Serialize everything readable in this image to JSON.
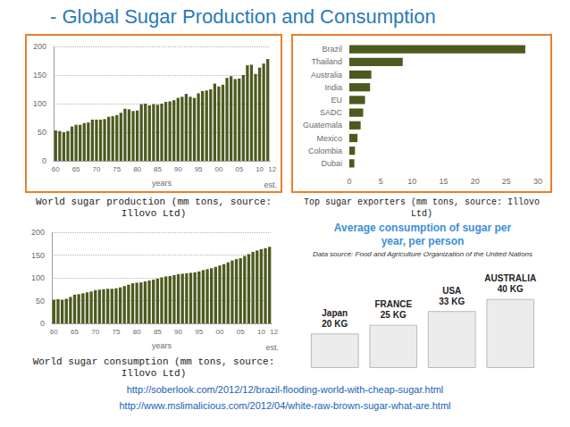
{
  "title": "- Global Sugar Production and Consumption",
  "chart_data": [
    {
      "type": "bar",
      "title": "World sugar production (mm tons, source: Illovo Ltd)",
      "x_label": "years",
      "annotations": [
        "est."
      ],
      "categories": [
        "60",
        null,
        null,
        null,
        null,
        "65",
        null,
        null,
        null,
        null,
        "70",
        null,
        null,
        null,
        null,
        "75",
        null,
        null,
        null,
        null,
        "80",
        null,
        null,
        null,
        null,
        "85",
        null,
        null,
        null,
        null,
        "90",
        null,
        null,
        null,
        null,
        "95",
        null,
        null,
        null,
        null,
        "00",
        null,
        null,
        null,
        null,
        "05",
        null,
        null,
        null,
        null,
        "10",
        null,
        "12"
      ],
      "values": [
        53,
        52,
        50,
        52,
        60,
        63,
        63,
        66,
        67,
        72,
        72,
        72,
        73,
        77,
        78,
        80,
        84,
        91,
        90,
        87,
        88,
        99,
        100,
        97,
        99,
        98,
        100,
        103,
        104,
        106,
        110,
        112,
        117,
        112,
        110,
        118,
        122,
        123,
        125,
        135,
        130,
        133,
        145,
        148,
        143,
        144,
        150,
        167,
        168,
        152,
        163,
        170,
        178
      ],
      "color": "#4d5a1f",
      "ylim": [
        0,
        200
      ],
      "yticks": [
        0,
        50,
        100,
        150,
        200
      ],
      "grid": true
    },
    {
      "type": "bar",
      "title": "World sugar consumption (mm tons, source: Illovo Ltd)",
      "x_label": "years",
      "annotations": [
        "est."
      ],
      "categories": [
        "60",
        null,
        null,
        null,
        null,
        "65",
        null,
        null,
        null,
        null,
        "70",
        null,
        null,
        null,
        null,
        "75",
        null,
        null,
        null,
        null,
        "80",
        null,
        null,
        null,
        null,
        "85",
        null,
        null,
        null,
        null,
        "90",
        null,
        null,
        null,
        null,
        "95",
        null,
        null,
        null,
        null,
        "00",
        null,
        null,
        null,
        null,
        "05",
        null,
        null,
        null,
        null,
        "10",
        null,
        "12"
      ],
      "values": [
        52,
        53,
        52,
        54,
        58,
        63,
        64,
        66,
        68,
        70,
        73,
        74,
        75,
        76,
        76,
        77,
        79,
        82,
        85,
        88,
        89,
        90,
        92,
        94,
        96,
        98,
        101,
        103,
        104,
        106,
        108,
        109,
        110,
        111,
        112,
        114,
        117,
        119,
        121,
        124,
        127,
        130,
        134,
        138,
        141,
        143,
        148,
        152,
        157,
        160,
        163,
        165,
        168
      ],
      "color": "#4d5a1f",
      "ylim": [
        0,
        200
      ],
      "yticks": [
        0,
        50,
        100,
        150,
        200
      ],
      "grid": true
    },
    {
      "type": "bar",
      "orientation": "horizontal",
      "title": "Top sugar exporters (mm tons, source: Illovo Ltd)",
      "categories": [
        "Brazil",
        "Thailand",
        "Australia",
        "India",
        "EU",
        "SADC",
        "Guatemala",
        "Mexico",
        "Colombia",
        "Dubai"
      ],
      "values": [
        28,
        8.5,
        3.5,
        3.3,
        2.5,
        2.2,
        1.8,
        1.3,
        0.9,
        0.8
      ],
      "color": "#4d5a1f",
      "xlim": [
        0,
        30
      ],
      "xticks": [
        0,
        5,
        10,
        15,
        20,
        25,
        30
      ],
      "grid": false
    },
    {
      "type": "bar",
      "title": "Average consumption of sugar per year, per person",
      "subtitle": "Data source: Food and Agriculture Organization of the United Nations",
      "categories": [
        "Japan",
        "FRANCE",
        "USA",
        "AUSTRALIA"
      ],
      "values": [
        20,
        25,
        33,
        40
      ],
      "value_labels": [
        "20 KG",
        "25 KG",
        "33 KG",
        "40 KG"
      ],
      "data_labels": true,
      "tick_labels": false,
      "color": "#ececec"
    }
  ],
  "sources": [
    "http://soberlook.com/2012/12/brazil-flooding-world-with-cheap-sugar.html",
    "http://www.mslimalicious.com/2012/04/white-raw-brown-sugar-what-are.html"
  ]
}
